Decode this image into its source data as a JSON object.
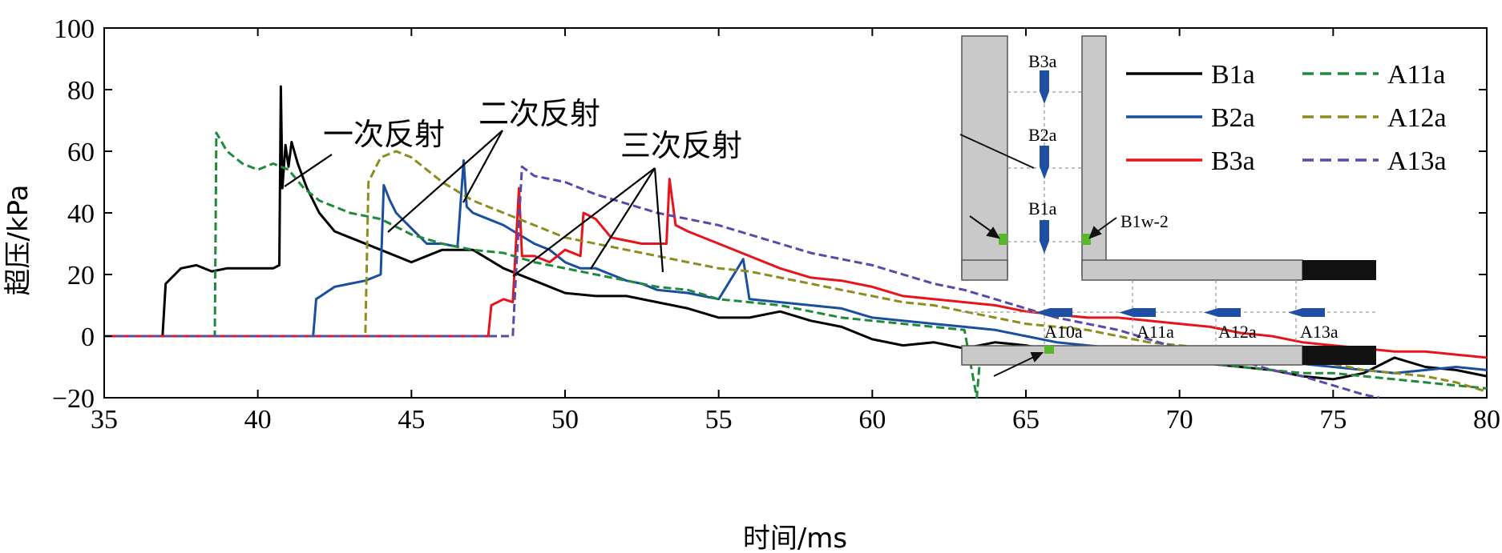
{
  "chart_data": {
    "type": "line",
    "title": "",
    "xlabel": "时间/ms",
    "ylabel": "超压/kPa",
    "xlim": [
      35,
      80
    ],
    "ylim": [
      -20,
      100
    ],
    "xticks": [
      35,
      40,
      45,
      50,
      55,
      60,
      65,
      70,
      75,
      80
    ],
    "yticks": [
      -20,
      0,
      20,
      40,
      60,
      80,
      100
    ],
    "grid": false,
    "legend_position": "top-right",
    "series": [
      {
        "name": "B1a",
        "color": "#000000",
        "dash": "solid",
        "x": [
          35,
          36.9,
          37.0,
          37.5,
          38,
          38.5,
          39,
          39.5,
          40,
          40.5,
          40.7,
          40.75,
          40.8,
          40.9,
          41.0,
          41.1,
          41.3,
          41.6,
          42,
          42.5,
          43,
          44,
          45,
          46,
          47,
          48,
          49,
          50,
          51,
          52,
          53,
          54,
          55,
          56,
          57,
          58,
          59,
          60,
          61,
          62,
          63,
          64,
          65,
          66,
          67,
          68,
          69,
          70,
          71,
          72,
          73,
          74,
          75,
          76,
          77,
          78,
          79,
          80
        ],
        "y": [
          0,
          0,
          17,
          22,
          23,
          21,
          22,
          22,
          22,
          22,
          23,
          81,
          48,
          62,
          55,
          63,
          56,
          48,
          40,
          34,
          32,
          28,
          24,
          28,
          28,
          22,
          18,
          14,
          13,
          13,
          11,
          9,
          6,
          6,
          8,
          5,
          3,
          -1,
          -3,
          -2,
          -4,
          -2,
          -3,
          -5,
          -5,
          -7,
          -8,
          -8,
          -9,
          -10,
          -11,
          -13,
          -14,
          -12,
          -7,
          -10,
          -11,
          -13
        ]
      },
      {
        "name": "B2a",
        "color": "#1a4fa0",
        "dash": "solid",
        "x": [
          35,
          41.8,
          41.9,
          42.5,
          43,
          43.5,
          44,
          44.1,
          44.3,
          44.5,
          45,
          45.5,
          46,
          46.5,
          46.7,
          46.8,
          47,
          47.5,
          48,
          48.5,
          49,
          49.5,
          50,
          50.5,
          51,
          51.5,
          52,
          52.5,
          53,
          54,
          55,
          55.8,
          56,
          57,
          58,
          59,
          60,
          61,
          62,
          63,
          64,
          65,
          66,
          67,
          68,
          69,
          70,
          71,
          72,
          73,
          74,
          75,
          76,
          77,
          78,
          79,
          80
        ],
        "y": [
          0,
          0,
          12,
          16,
          17,
          18,
          20,
          49,
          44,
          40,
          35,
          30,
          30,
          29,
          57,
          42,
          40,
          38,
          36,
          33,
          30,
          28,
          24,
          22,
          22,
          20,
          18,
          17,
          15,
          14,
          12,
          25,
          12,
          11,
          10,
          9,
          6,
          5,
          4,
          3,
          2,
          0,
          -2,
          -3,
          -4,
          -5,
          -6,
          -7,
          -7,
          -8,
          -9,
          -10,
          -11,
          -12,
          -11,
          -10,
          -11
        ]
      },
      {
        "name": "B3a",
        "color": "#e8141b",
        "dash": "solid",
        "x": [
          35,
          47.5,
          47.6,
          48,
          48.3,
          48.5,
          48.6,
          49,
          49.5,
          50,
          50.5,
          50.6,
          51,
          51.5,
          52,
          52.5,
          53,
          53.3,
          53.4,
          53.6,
          54,
          55,
          56,
          57,
          58,
          59,
          60,
          61,
          62,
          63,
          64,
          65,
          66,
          67,
          68,
          69,
          70,
          71,
          72,
          73,
          74,
          75,
          76,
          77,
          78,
          79,
          80
        ],
        "y": [
          0,
          0,
          10,
          12,
          11,
          48,
          26,
          26,
          24,
          28,
          26,
          40,
          38,
          32,
          31,
          30,
          30,
          30,
          51,
          36,
          34,
          30,
          26,
          22,
          19,
          18,
          16,
          13,
          12,
          11,
          10,
          8,
          7,
          6,
          6,
          5,
          4,
          3,
          1,
          0,
          -2,
          -3,
          -4,
          -5,
          -5,
          -6,
          -7
        ]
      },
      {
        "name": "A11a",
        "color": "#1e8a3b",
        "dash": "dash",
        "x": [
          35,
          38.6,
          38.65,
          39,
          39.5,
          40,
          40.5,
          41,
          41.5,
          42,
          43,
          44,
          45,
          46,
          47,
          48,
          49,
          50,
          51,
          52,
          53,
          54,
          55,
          56,
          57,
          58,
          59,
          60,
          61,
          62,
          63,
          63.4,
          63.5,
          63.6,
          64,
          65,
          66,
          67,
          68,
          69,
          70,
          71,
          72,
          73,
          74,
          75,
          76,
          77,
          78,
          79,
          80
        ],
        "y": [
          0,
          0,
          66,
          60,
          56,
          54,
          56,
          54,
          48,
          44,
          40,
          38,
          33,
          30,
          28,
          27,
          24,
          22,
          20,
          18,
          16,
          15,
          12,
          11,
          10,
          8,
          6,
          5,
          4,
          3,
          2,
          -20,
          -8,
          -4,
          -5,
          -6,
          -7,
          -7,
          -8,
          -8,
          -9,
          -9,
          -10,
          -11,
          -12,
          -12,
          -13,
          -14,
          -15,
          -16,
          -17
        ]
      },
      {
        "name": "A12a",
        "color": "#8c8c1f",
        "dash": "dash",
        "x": [
          35,
          43.5,
          43.6,
          44,
          44.5,
          45,
          45.5,
          46,
          47,
          48,
          49,
          50,
          51,
          52,
          53,
          54,
          55,
          56,
          57,
          58,
          59,
          60,
          61,
          62,
          63,
          64,
          65,
          66,
          67,
          68,
          69,
          70,
          71,
          72,
          73,
          74,
          75,
          76,
          77,
          78,
          79,
          80
        ],
        "y": [
          0,
          0,
          50,
          58,
          60,
          58,
          54,
          50,
          44,
          40,
          36,
          32,
          30,
          28,
          26,
          24,
          22,
          21,
          19,
          17,
          15,
          13,
          11,
          10,
          8,
          6,
          4,
          3,
          2,
          0,
          -2,
          -3,
          -4,
          -5,
          -6,
          -8,
          -9,
          -11,
          -12,
          -13,
          -15,
          -18
        ]
      },
      {
        "name": "A13a",
        "color": "#5a4aa8",
        "dash": "dash",
        "x": [
          35,
          48.3,
          48.4,
          48.6,
          49,
          50,
          51,
          52,
          53,
          54,
          55,
          56,
          57,
          58,
          59,
          60,
          61,
          62,
          63,
          64,
          65,
          66,
          67,
          68,
          69,
          70,
          71,
          72,
          73,
          74,
          75,
          76,
          76.5
        ],
        "y": [
          0,
          0,
          20,
          55,
          52,
          50,
          46,
          43,
          40,
          38,
          36,
          33,
          30,
          27,
          25,
          23,
          20,
          17,
          15,
          12,
          9,
          6,
          4,
          2,
          -1,
          -4,
          -6,
          -8,
          -11,
          -13,
          -16,
          -19,
          -20
        ]
      }
    ],
    "annotations": [
      {
        "text": "一次反射"
      },
      {
        "text": "二次反射"
      },
      {
        "text": "三次反射"
      }
    ],
    "inset_labels": [
      "B3a",
      "B2a",
      "B1a",
      "B1w-2",
      "A10a",
      "A11a",
      "A12a",
      "A13a"
    ]
  }
}
